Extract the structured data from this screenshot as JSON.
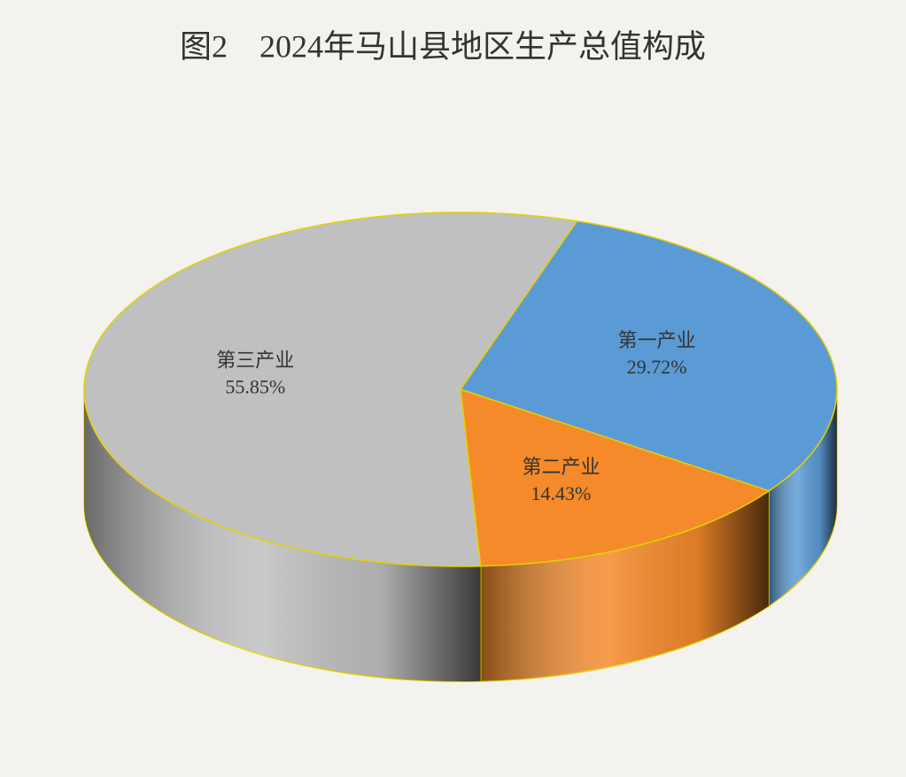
{
  "chart_data": {
    "type": "pie3d",
    "title": "图2　2024年马山县地区生产总值构成",
    "categories": [
      "第一产业",
      "第二产业",
      "第三产业"
    ],
    "values": [
      29.72,
      14.43,
      55.85
    ],
    "value_labels": [
      "29.72%",
      "14.43%",
      "55.85%"
    ],
    "colors": [
      "#5b9bd5",
      "#f58a2a",
      "#c0c0c0"
    ]
  }
}
